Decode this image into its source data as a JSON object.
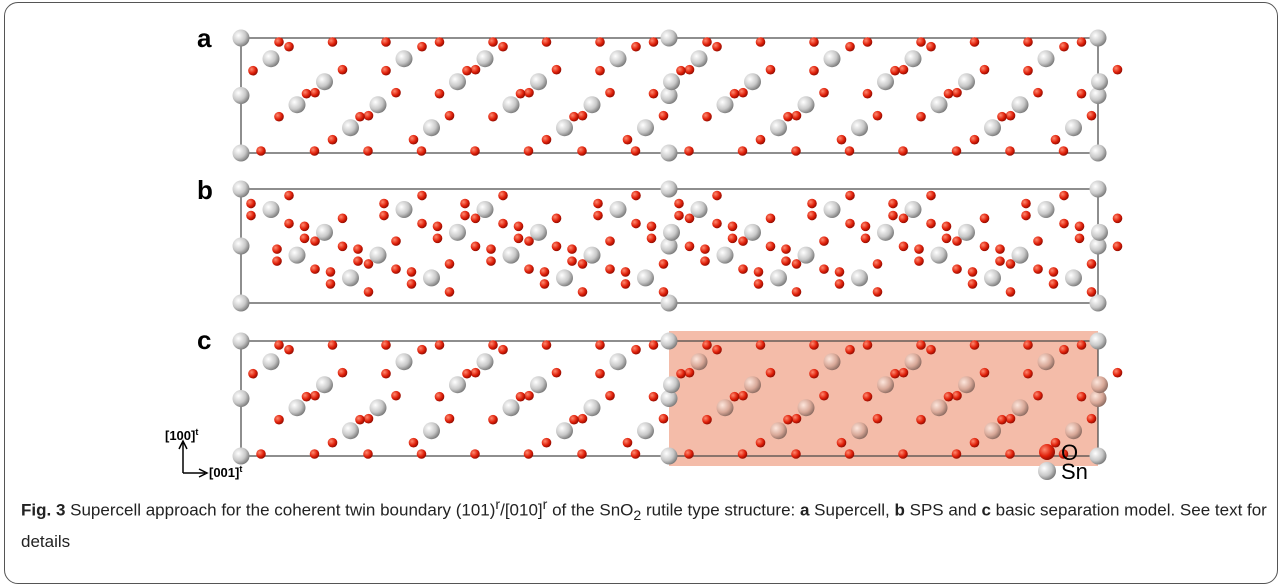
{
  "panels": {
    "labels": [
      "a",
      "b",
      "c"
    ]
  },
  "axes": {
    "up": "[100]",
    "up_sup": "t",
    "right": "[001]",
    "right_sup": "t"
  },
  "legend": {
    "items": [
      "O",
      "Sn"
    ]
  },
  "caption": {
    "parts": [
      "Fig. 3",
      " Supercell approach for the coherent twin boundary (101)",
      "r",
      "/[010]",
      "r",
      " of the SnO",
      "2",
      " rutile type structure: ",
      "a",
      " Supercell, ",
      "b",
      " SPS and ",
      "c",
      " basic separation model. See text for details"
    ]
  }
}
